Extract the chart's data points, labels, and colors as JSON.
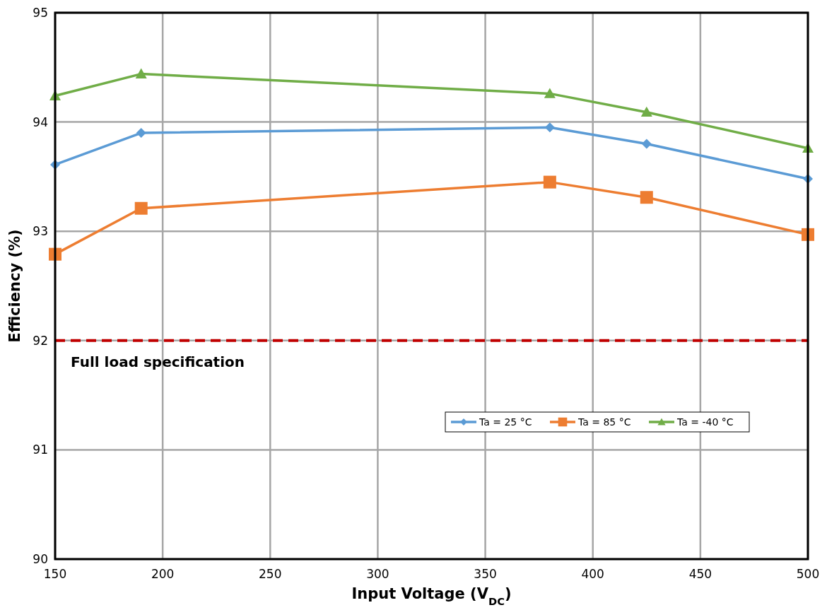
{
  "chart_data": {
    "type": "line",
    "xlabel": "Input Voltage (V$_{DC}$)",
    "ylabel": "Efficiency (%)",
    "x": [
      150,
      190,
      380,
      425,
      500
    ],
    "series": [
      {
        "name": "Ta = 25 °C",
        "color": "#5b9bd5",
        "marker": "diamond",
        "values": [
          93.61,
          93.9,
          93.95,
          93.8,
          93.48
        ]
      },
      {
        "name": "Ta = 85 °C",
        "color": "#ed7d31",
        "marker": "square",
        "values": [
          92.79,
          93.21,
          93.45,
          93.31,
          92.97
        ]
      },
      {
        "name": "Ta = -40 °C",
        "color": "#70ad47",
        "marker": "triangle",
        "values": [
          94.24,
          94.44,
          94.26,
          94.09,
          93.76
        ]
      }
    ],
    "xlim": [
      150,
      500
    ],
    "xticks": [
      150,
      200,
      250,
      300,
      350,
      400,
      450,
      500
    ],
    "ylim": [
      90,
      95
    ],
    "yticks": [
      90,
      91,
      92,
      93,
      94,
      95
    ],
    "ref_lines": [
      {
        "axis": "y",
        "value": 92,
        "label": "Full load specification",
        "color": "#c00000",
        "line_style": "dashed"
      }
    ],
    "grid": true,
    "legend": "bottom right",
    "line_style": "solid"
  }
}
